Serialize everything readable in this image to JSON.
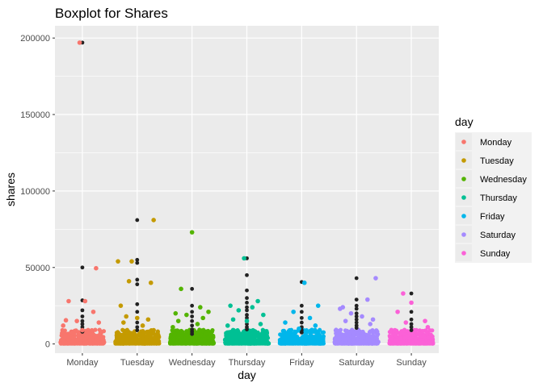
{
  "chart_data": {
    "type": "scatter",
    "title": "Boxplot for Shares",
    "xlabel": "day",
    "ylabel": "shares",
    "ylim": [
      -6000,
      208000
    ],
    "y_ticks": [
      0,
      50000,
      100000,
      150000,
      200000
    ],
    "y_tick_labels": [
      "0",
      "50000",
      "100000",
      "150000",
      "200000"
    ],
    "categories": [
      "Monday",
      "Tuesday",
      "Wednesday",
      "Thursday",
      "Friday",
      "Saturday",
      "Sunday"
    ],
    "legend": {
      "title": "day",
      "position": "right",
      "entries": [
        "Monday",
        "Tuesday",
        "Wednesday",
        "Thursday",
        "Friday",
        "Saturday",
        "Sunday"
      ]
    },
    "grid": true,
    "colors": {
      "Monday": "#F8766D",
      "Tuesday": "#C49A00",
      "Wednesday": "#53B400",
      "Thursday": "#00C094",
      "Friday": "#00B6EB",
      "Saturday": "#A58AFF",
      "Sunday": "#FB61D7",
      "outlier": "#222222",
      "panel": "#EBEBEB",
      "grid": "#FFFFFF"
    },
    "series": [
      {
        "name": "Monday",
        "points": [
          {
            "x": -0.05,
            "y": 197000
          },
          {
            "x": -0.25,
            "y": 28000
          },
          {
            "x": 0.05,
            "y": 28000
          },
          {
            "x": 0.2,
            "y": 21000
          },
          {
            "x": -0.3,
            "y": 15500
          },
          {
            "x": -0.1,
            "y": 15000
          },
          {
            "x": 0.3,
            "y": 14000
          },
          {
            "x": -0.35,
            "y": 12000
          },
          {
            "x": 0.25,
            "y": 49500
          },
          {
            "x": 0.0,
            "y": 9000
          },
          {
            "x": -0.2,
            "y": 8000
          },
          {
            "x": 0.1,
            "y": 7000
          }
        ],
        "outliers": [
          197000,
          50000,
          28500,
          22000,
          18000,
          15000,
          13000,
          11000,
          9500,
          8000
        ]
      },
      {
        "name": "Tuesday",
        "points": [
          {
            "x": 0.3,
            "y": 81000
          },
          {
            "x": -0.35,
            "y": 54000
          },
          {
            "x": -0.1,
            "y": 54000
          },
          {
            "x": 0.25,
            "y": 40000
          },
          {
            "x": -0.15,
            "y": 41000
          },
          {
            "x": -0.3,
            "y": 25000
          },
          {
            "x": -0.2,
            "y": 18000
          },
          {
            "x": 0.0,
            "y": 17000
          },
          {
            "x": 0.2,
            "y": 16000
          },
          {
            "x": -0.25,
            "y": 14000
          },
          {
            "x": 0.1,
            "y": 12000
          },
          {
            "x": 0.3,
            "y": 9000
          }
        ],
        "outliers": [
          81000,
          55000,
          53000,
          42000,
          39000,
          26000,
          21000,
          17000,
          14000,
          11000,
          9000
        ]
      },
      {
        "name": "Wednesday",
        "points": [
          {
            "x": 0.0,
            "y": 73000
          },
          {
            "x": -0.2,
            "y": 36000
          },
          {
            "x": 0.15,
            "y": 24000
          },
          {
            "x": -0.3,
            "y": 20000
          },
          {
            "x": 0.3,
            "y": 21000
          },
          {
            "x": -0.1,
            "y": 19000
          },
          {
            "x": 0.2,
            "y": 17000
          },
          {
            "x": -0.25,
            "y": 15000
          },
          {
            "x": 0.1,
            "y": 13000
          },
          {
            "x": -0.35,
            "y": 11000
          }
        ],
        "outliers": [
          73000,
          36000,
          25000,
          21000,
          18000,
          15000,
          12000,
          9500,
          8000,
          6500
        ]
      },
      {
        "name": "Thursday",
        "points": [
          {
            "x": -0.05,
            "y": 56000
          },
          {
            "x": 0.2,
            "y": 28000
          },
          {
            "x": -0.3,
            "y": 25000
          },
          {
            "x": 0.1,
            "y": 24000
          },
          {
            "x": -0.15,
            "y": 22000
          },
          {
            "x": 0.3,
            "y": 19000
          },
          {
            "x": -0.25,
            "y": 16000
          },
          {
            "x": 0.0,
            "y": 15000
          },
          {
            "x": 0.25,
            "y": 13000
          },
          {
            "x": -0.35,
            "y": 12000
          }
        ],
        "outliers": [
          56000,
          45000,
          35000,
          30000,
          27000,
          24000,
          22000,
          19000,
          17000,
          15000,
          13000,
          11000,
          9500
        ]
      },
      {
        "name": "Friday",
        "points": [
          {
            "x": 0.05,
            "y": 40000
          },
          {
            "x": 0.3,
            "y": 25000
          },
          {
            "x": -0.15,
            "y": 21000
          },
          {
            "x": 0.15,
            "y": 17000
          },
          {
            "x": -0.3,
            "y": 14000
          },
          {
            "x": 0.25,
            "y": 12000
          },
          {
            "x": -0.05,
            "y": 10000
          }
        ],
        "outliers": [
          40500,
          25000,
          21000,
          17000,
          14000,
          11000,
          9000,
          7500
        ]
      },
      {
        "name": "Saturday",
        "points": [
          {
            "x": 0.35,
            "y": 43000
          },
          {
            "x": -0.25,
            "y": 24000
          },
          {
            "x": -0.3,
            "y": 23000
          },
          {
            "x": 0.2,
            "y": 29000
          },
          {
            "x": -0.1,
            "y": 20000
          },
          {
            "x": 0.3,
            "y": 16000
          },
          {
            "x": 0.1,
            "y": 18000
          },
          {
            "x": -0.2,
            "y": 15000
          },
          {
            "x": 0.25,
            "y": 13000
          }
        ],
        "outliers": [
          43000,
          29000,
          25000,
          23000,
          20000,
          18000,
          16000,
          14000,
          12000,
          10500
        ]
      },
      {
        "name": "Sunday",
        "points": [
          {
            "x": -0.15,
            "y": 33000
          },
          {
            "x": 0.0,
            "y": 27000
          },
          {
            "x": -0.25,
            "y": 21000
          },
          {
            "x": 0.25,
            "y": 15000
          },
          {
            "x": -0.1,
            "y": 14000
          },
          {
            "x": 0.3,
            "y": 11000
          },
          {
            "x": -0.3,
            "y": 9000
          }
        ],
        "outliers": [
          33000,
          27000,
          21000,
          16000,
          13000,
          11000,
          9000
        ]
      }
    ]
  }
}
